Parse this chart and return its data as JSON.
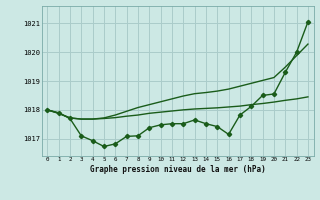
{
  "title": "Graphe pression niveau de la mer (hPa)",
  "bg_color": "#cce8e4",
  "grid_color": "#aaccca",
  "line_color": "#1a5c1a",
  "xlim": [
    -0.5,
    23.5
  ],
  "ylim": [
    1016.4,
    1021.6
  ],
  "yticks": [
    1017,
    1018,
    1019,
    1020,
    1021
  ],
  "xticks": [
    0,
    1,
    2,
    3,
    4,
    5,
    6,
    7,
    8,
    9,
    10,
    11,
    12,
    13,
    14,
    15,
    16,
    17,
    18,
    19,
    20,
    21,
    22,
    23
  ],
  "series": [
    {
      "x": [
        0,
        1,
        2,
        3,
        4,
        5,
        6,
        7,
        8,
        9,
        10,
        11,
        12,
        13,
        14,
        15,
        16,
        17,
        18,
        19,
        20,
        21,
        22,
        23
      ],
      "y": [
        1018.0,
        1017.9,
        1017.7,
        1017.1,
        1016.93,
        1016.73,
        1016.82,
        1017.08,
        1017.1,
        1017.38,
        1017.48,
        1017.52,
        1017.52,
        1017.65,
        1017.52,
        1017.42,
        1017.15,
        1017.82,
        1018.12,
        1018.5,
        1018.55,
        1019.3,
        1020.0,
        1021.05
      ],
      "marker": "D",
      "markersize": 2.2,
      "linewidth": 1.0
    },
    {
      "x": [
        0,
        1,
        2,
        3,
        4,
        5,
        6,
        7,
        8,
        9,
        10,
        11,
        12,
        13,
        14,
        15,
        16,
        17,
        18,
        19,
        20,
        21,
        22,
        23
      ],
      "y": [
        1018.0,
        1017.88,
        1017.72,
        1017.68,
        1017.68,
        1017.7,
        1017.73,
        1017.78,
        1017.82,
        1017.88,
        1017.92,
        1017.96,
        1018.0,
        1018.03,
        1018.05,
        1018.07,
        1018.1,
        1018.13,
        1018.18,
        1018.22,
        1018.27,
        1018.33,
        1018.38,
        1018.45
      ],
      "marker": null,
      "markersize": 0,
      "linewidth": 1.0
    },
    {
      "x": [
        0,
        1,
        2,
        3,
        4,
        5,
        6,
        7,
        8,
        9,
        10,
        11,
        12,
        13,
        14,
        15,
        16,
        17,
        18,
        19,
        20,
        21,
        22,
        23
      ],
      "y": [
        1018.0,
        1017.88,
        1017.72,
        1017.68,
        1017.68,
        1017.72,
        1017.82,
        1017.95,
        1018.08,
        1018.18,
        1018.28,
        1018.38,
        1018.48,
        1018.56,
        1018.6,
        1018.65,
        1018.72,
        1018.82,
        1018.92,
        1019.02,
        1019.12,
        1019.48,
        1019.88,
        1020.28
      ],
      "marker": null,
      "markersize": 0,
      "linewidth": 1.0
    }
  ]
}
